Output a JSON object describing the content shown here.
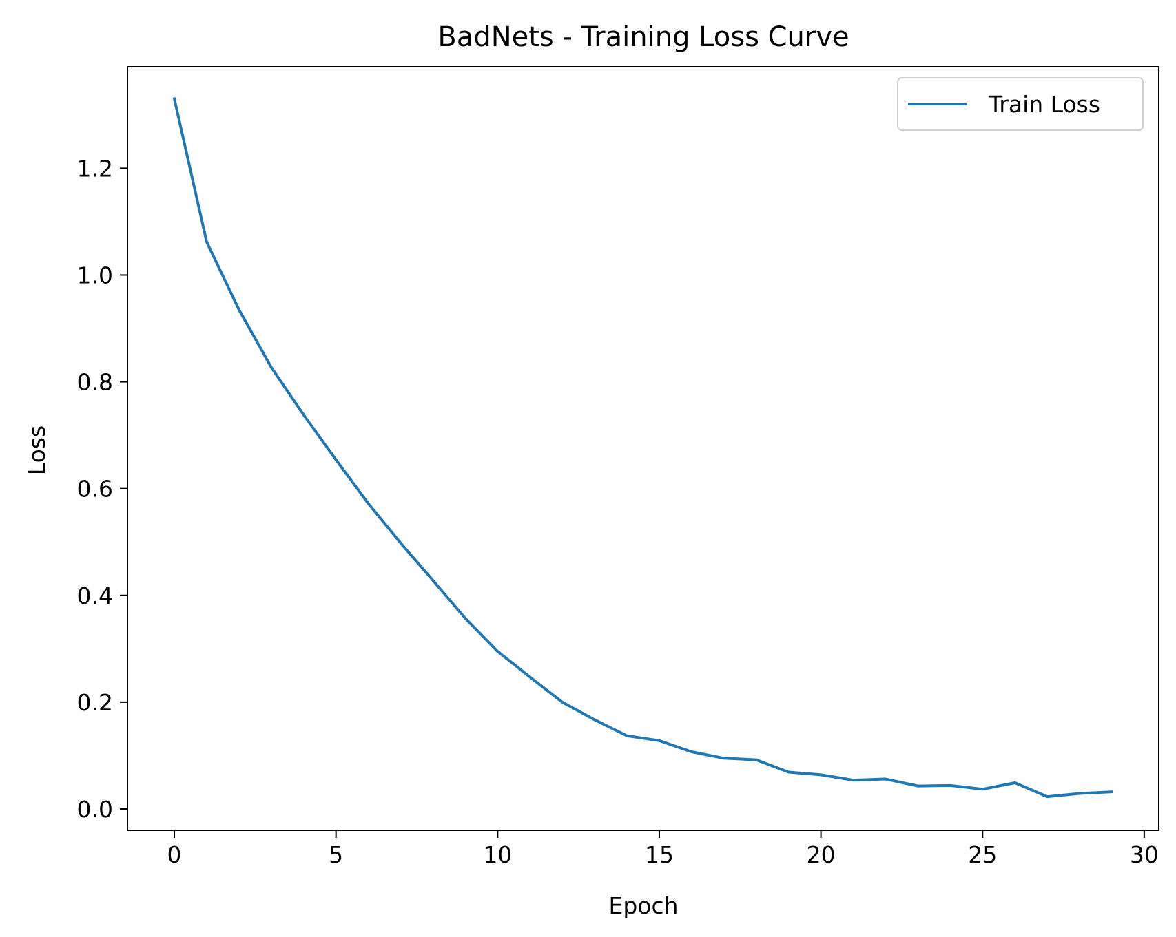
{
  "chart_data": {
    "type": "line",
    "title": "BadNets - Training Loss Curve",
    "xlabel": "Epoch",
    "ylabel": "Loss",
    "xlim": [
      -1.45,
      30.45
    ],
    "ylim": [
      -0.04,
      1.39
    ],
    "xticks": [
      0,
      5,
      10,
      15,
      20,
      25,
      30
    ],
    "xtick_labels": [
      "0",
      "5",
      "10",
      "15",
      "20",
      "25",
      "30"
    ],
    "yticks": [
      0.0,
      0.2,
      0.4,
      0.6,
      0.8,
      1.0,
      1.2
    ],
    "ytick_labels": [
      "0.0",
      "0.2",
      "0.4",
      "0.6",
      "0.8",
      "1.0",
      "1.2"
    ],
    "grid": false,
    "legend_position": "top-right",
    "series": [
      {
        "name": "Train Loss",
        "color": "#1f77b4",
        "x": [
          0,
          1,
          2,
          3,
          4,
          5,
          6,
          7,
          8,
          9,
          10,
          11,
          12,
          13,
          14,
          15,
          16,
          17,
          18,
          19,
          20,
          21,
          22,
          23,
          24,
          25,
          26,
          27,
          28,
          29
        ],
        "values": [
          1.33,
          1.062,
          0.935,
          0.827,
          0.738,
          0.654,
          0.572,
          0.498,
          0.428,
          0.357,
          0.295,
          0.247,
          0.2,
          0.167,
          0.137,
          0.128,
          0.107,
          0.095,
          0.092,
          0.069,
          0.064,
          0.054,
          0.056,
          0.043,
          0.044,
          0.037,
          0.049,
          0.023,
          0.029,
          0.032
        ]
      }
    ]
  }
}
